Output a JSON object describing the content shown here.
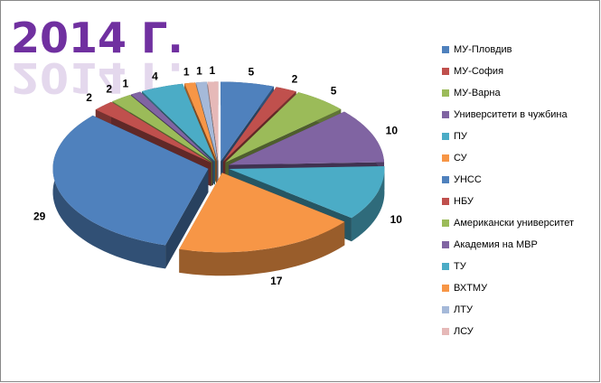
{
  "chart_data": {
    "type": "pie3d",
    "title": "2014 Г.",
    "categories": [
      "МУ-Пловдив",
      "МУ-София",
      "МУ-Варна",
      "Университети в чужбина",
      "ПУ",
      "СУ",
      "УНСС",
      "НБУ",
      "Американски университет",
      "Академия на МВР",
      "ТУ",
      "ВХТМУ",
      "ЛТУ",
      "ЛСУ"
    ],
    "values": [
      5,
      2,
      5,
      10,
      10,
      17,
      29,
      2,
      2,
      1,
      4,
      1,
      1,
      1
    ],
    "colors": [
      "#4f81bd",
      "#c0504d",
      "#9bbb59",
      "#8064a2",
      "#4bacc6",
      "#f79646",
      "#4f81bd",
      "#c0504d",
      "#9bbb59",
      "#8064a2",
      "#4bacc6",
      "#f79646",
      "#a5b9d9",
      "#e6b9b8"
    ],
    "legend": "right"
  }
}
